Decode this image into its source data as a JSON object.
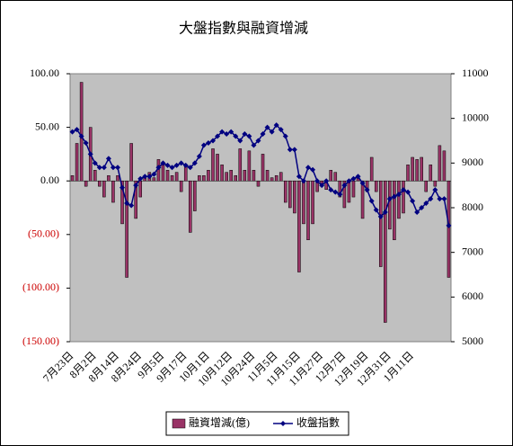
{
  "chart_data": {
    "type": "bar+line",
    "title": "大盤指數與融資增減",
    "categories": [
      "7月23日",
      null,
      null,
      null,
      null,
      "8月2日",
      null,
      null,
      null,
      null,
      "8月14日",
      null,
      null,
      null,
      null,
      "8月24日",
      null,
      null,
      null,
      null,
      "9月5日",
      null,
      null,
      null,
      null,
      "9月17日",
      null,
      null,
      null,
      null,
      "10月1日",
      null,
      null,
      null,
      null,
      "10月12日",
      null,
      null,
      null,
      null,
      "10月24日",
      null,
      null,
      null,
      null,
      "11月5日",
      null,
      null,
      null,
      null,
      "11月15日",
      null,
      null,
      null,
      null,
      "11月27日",
      null,
      null,
      null,
      null,
      "12月7日",
      null,
      null,
      null,
      null,
      "12月19日",
      null,
      null,
      null,
      null,
      "12月31日",
      null,
      null,
      null,
      null,
      "1月11日",
      null,
      null,
      null,
      null,
      null,
      null,
      null,
      null
    ],
    "series": [
      {
        "name": "融資增減(億)",
        "type": "bar",
        "color": "#993366",
        "values": [
          5,
          35,
          92,
          -5,
          50,
          10,
          -5,
          -15,
          5,
          -20,
          5,
          -40,
          -90,
          35,
          -35,
          -15,
          5,
          8,
          3,
          20,
          15,
          10,
          5,
          8,
          -10,
          15,
          -48,
          -28,
          5,
          5,
          10,
          30,
          25,
          15,
          8,
          10,
          5,
          30,
          10,
          28,
          10,
          -5,
          25,
          10,
          3,
          5,
          8,
          -20,
          -25,
          -30,
          -85,
          -40,
          -55,
          -40,
          -10,
          -5,
          -8,
          10,
          8,
          -15,
          -25,
          -20,
          -15,
          5,
          -35,
          -10,
          22,
          -10,
          -80,
          -132,
          -45,
          -55,
          -35,
          -30,
          15,
          22,
          20,
          22,
          -10,
          15,
          -5,
          33,
          28,
          -90
        ]
      },
      {
        "name": "收盤指數",
        "type": "line",
        "axis": "y2",
        "color": "#000080",
        "values": [
          9700,
          9750,
          9600,
          9450,
          9200,
          9000,
          8900,
          8900,
          9100,
          8900,
          8900,
          8450,
          8100,
          8050,
          8500,
          8650,
          8700,
          8700,
          8750,
          8900,
          9000,
          8950,
          8900,
          8950,
          9000,
          8950,
          8900,
          9000,
          9150,
          9400,
          9450,
          9500,
          9600,
          9700,
          9650,
          9700,
          9600,
          9500,
          9650,
          9600,
          9400,
          9500,
          9650,
          9800,
          9700,
          9850,
          9750,
          9600,
          9300,
          9300,
          8700,
          8600,
          8900,
          8850,
          8600,
          8500,
          8600,
          8400,
          8350,
          8300,
          8500,
          8600,
          8650,
          8700,
          8550,
          8400,
          8150,
          7950,
          7800,
          7900,
          8200,
          8250,
          8300,
          8400,
          8350,
          8150,
          7900,
          8000,
          8100,
          8200,
          8400,
          8200,
          8200,
          7600
        ]
      }
    ],
    "ylim": [
      -150,
      100
    ],
    "yticks": [
      {
        "value": -150,
        "label": "(150.00)"
      },
      {
        "value": -100,
        "label": "(100.00)"
      },
      {
        "value": -50,
        "label": "(50.00)"
      },
      {
        "value": 0,
        "label": "0.00"
      },
      {
        "value": 50,
        "label": "50.00"
      },
      {
        "value": 100,
        "label": "100.00"
      }
    ],
    "y2lim": [
      5000,
      11000
    ],
    "y2ticks": [
      5000,
      6000,
      7000,
      8000,
      9000,
      10000,
      11000
    ],
    "negative_tick_color": "#cc0000",
    "plot_background": "#c0c0c0",
    "legend": "bottom"
  }
}
